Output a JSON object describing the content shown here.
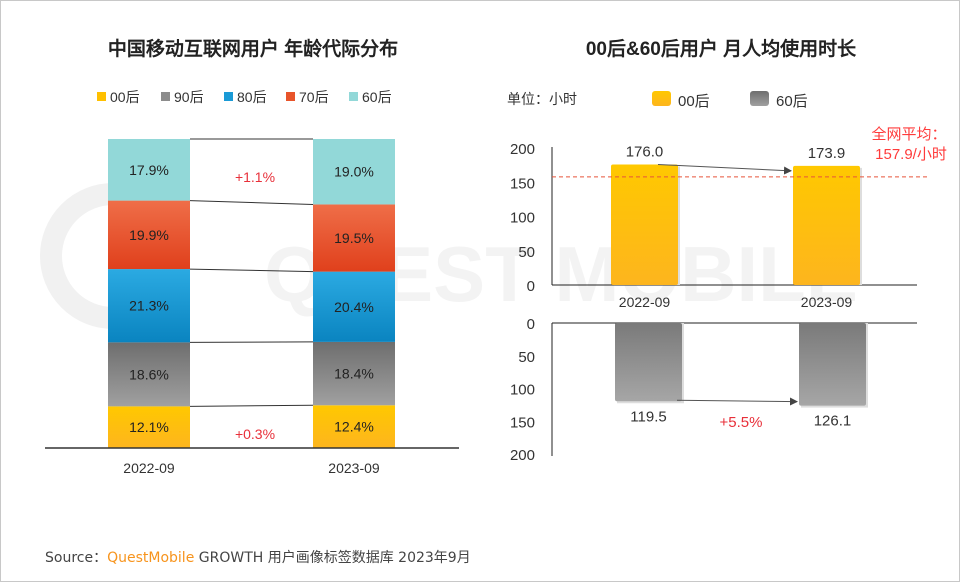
{
  "source": {
    "label": "Source：",
    "brand": "QuestMobile",
    "text": " GROWTH 用户画像标签数据库 2023年9月"
  },
  "watermark": "QUEST MOBILE",
  "chart_data": [
    {
      "type": "bar",
      "stacked": true,
      "title": "中国移动互联网用户 年龄代际分布",
      "categories": [
        "2022-09",
        "2023-09"
      ],
      "series": [
        {
          "name": "00后",
          "color": "#FFC000",
          "values": [
            12.1,
            12.4
          ],
          "labels": [
            "12.1%",
            "12.4%"
          ]
        },
        {
          "name": "90后",
          "color": "#8C8C8C",
          "values": [
            18.6,
            18.4
          ],
          "labels": [
            "18.6%",
            "18.4%"
          ]
        },
        {
          "name": "80后",
          "color": "#1A9AD6",
          "values": [
            21.3,
            20.4
          ],
          "labels": [
            "21.3%",
            "20.4%"
          ]
        },
        {
          "name": "70后",
          "color": "#E8542A",
          "values": [
            19.9,
            19.5
          ],
          "labels": [
            "19.9%",
            "19.5%"
          ]
        },
        {
          "name": "60后",
          "color": "#92D8D8",
          "values": [
            17.9,
            19.0
          ],
          "labels": [
            "17.9%",
            "19.0%"
          ]
        }
      ],
      "legend_order": [
        "00后",
        "90后",
        "80后",
        "70后",
        "60后"
      ],
      "annotations": [
        {
          "text": "+1.1%",
          "series": "60后"
        },
        {
          "text": "+0.3%",
          "series": "00后"
        }
      ],
      "legend": "top"
    },
    {
      "type": "bar",
      "title": "00后&60后用户 月人均使用时长",
      "unit_label": "单位：小时",
      "categories": [
        "2022-09",
        "2023-09"
      ],
      "series": [
        {
          "name": "00后",
          "color": "#FFC000",
          "values": [
            176.0,
            173.9
          ],
          "labels": [
            "176.0",
            "173.9"
          ]
        },
        {
          "name": "60后",
          "color": "#8C8C8C",
          "values": [
            119.5,
            126.1
          ],
          "labels": [
            "119.5",
            "126.1"
          ]
        }
      ],
      "top_axis": {
        "ticks": [
          "0",
          "50",
          "100",
          "150",
          "200"
        ],
        "ylim": [
          0,
          200
        ]
      },
      "bottom_axis": {
        "ticks": [
          "0",
          "50",
          "100",
          "150",
          "200"
        ],
        "ylim": [
          0,
          200
        ],
        "inverted": true
      },
      "reference_line": {
        "value": 157.9,
        "label_line1": "全网平均：",
        "label_line2": "157.9/小时",
        "color": "#FF3B3B"
      },
      "annotations": [
        {
          "text": "+5.5%",
          "series": "60后"
        }
      ],
      "legend": "top"
    }
  ]
}
